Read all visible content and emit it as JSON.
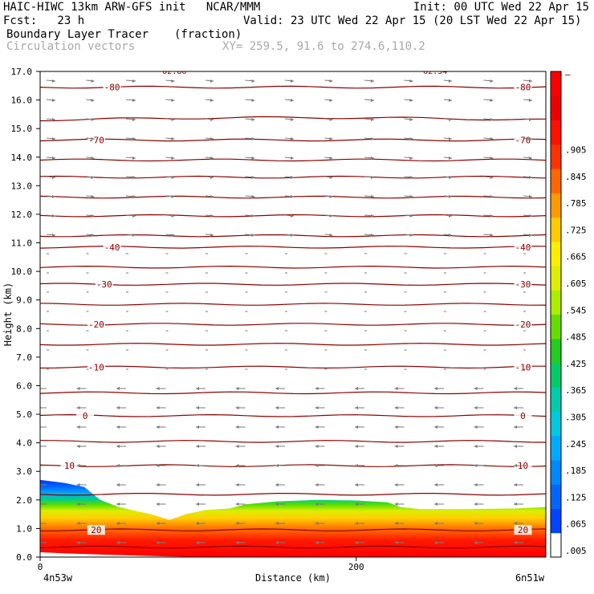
{
  "header": {
    "model": "HAIC-HIWC 13km ARW-GFS init   NCAR/MMM",
    "init": "Init: 00 UTC Wed 22 Apr 15",
    "fcst": "Fcst:   23 h",
    "valid": "Valid: 23 UTC Wed 22 Apr 15 (20 LST Wed 22 Apr 15)",
    "field": "Boundary Layer Tracer",
    "units": "(fraction)",
    "vectors": "Circulation vectors",
    "xy": "XY= 259.5, 91.6 to 274.6,110.2"
  },
  "chart_data": {
    "type": "cross-section",
    "ylabel": "Height (km)",
    "xlabel": "Distance (km)",
    "ylim": [
      0,
      17
    ],
    "xlim": [
      0,
      320
    ],
    "y_ticks": [
      "0.0",
      "1.0",
      "2.0",
      "3.0",
      "4.0",
      "5.0",
      "6.0",
      "7.0",
      "8.0",
      "9.0",
      "10.0",
      "11.0",
      "12.0",
      "13.0",
      "14.0",
      "15.0",
      "16.0",
      "17.0"
    ],
    "x_tick_value": 200,
    "x_tick_label": "200",
    "x_left_label": "4n53w",
    "x_right_label": "6n51w",
    "colorbar": {
      "labels": [
        ".005",
        ".065",
        ".125",
        ".185",
        ".245",
        ".305",
        ".365",
        ".425",
        ".485",
        ".545",
        ".605",
        ".665",
        ".725",
        ".785",
        ".845",
        ".905",
        "–"
      ],
      "colors": [
        "#ffffff",
        "#0044ff",
        "#0066ff",
        "#0088ff",
        "#00aaff",
        "#00c8e0",
        "#00ccaa",
        "#00cc66",
        "#22cc22",
        "#66dd00",
        "#aaee00",
        "#ddee00",
        "#ffee00",
        "#ffcc00",
        "#ff9900",
        "#ff6600",
        "#ff3300",
        "#ff1100",
        "#ee0000",
        "#ff0000"
      ]
    },
    "tracer_top_km": [
      [
        0,
        2.7
      ],
      [
        15,
        2.6
      ],
      [
        28,
        2.45
      ],
      [
        38,
        2.0
      ],
      [
        50,
        1.75
      ],
      [
        70,
        1.5
      ],
      [
        82,
        1.3
      ],
      [
        92,
        1.5
      ],
      [
        105,
        1.65
      ],
      [
        120,
        1.7
      ],
      [
        130,
        1.85
      ],
      [
        150,
        1.95
      ],
      [
        175,
        2.0
      ],
      [
        200,
        1.98
      ],
      [
        220,
        1.92
      ],
      [
        228,
        1.75
      ],
      [
        240,
        1.68
      ],
      [
        270,
        1.68
      ],
      [
        300,
        1.7
      ],
      [
        320,
        1.75
      ]
    ],
    "isotherms": [
      {
        "label": "-80",
        "height_km": 16.45,
        "label_x": [
          45,
          305
        ]
      },
      {
        "label": "",
        "height_km": 15.3
      },
      {
        "label": "-70",
        "height_km": 14.6,
        "label_x": [
          35,
          305
        ]
      },
      {
        "label": "",
        "height_km": 13.9
      },
      {
        "label": "",
        "height_km": 13.3
      },
      {
        "label": "",
        "height_km": 12.6
      },
      {
        "label": "",
        "height_km": 11.95
      },
      {
        "label": "",
        "height_km": 11.25
      },
      {
        "label": "-40",
        "height_km": 10.85,
        "label_x": [
          45,
          305
        ]
      },
      {
        "label": "",
        "height_km": 10.15
      },
      {
        "label": "-30",
        "height_km": 9.55,
        "label_x": [
          40,
          305
        ]
      },
      {
        "label": "",
        "height_km": 8.85
      },
      {
        "label": "-20",
        "height_km": 8.15,
        "label_x": [
          35,
          305
        ]
      },
      {
        "label": "",
        "height_km": 7.45
      },
      {
        "label": "-10",
        "height_km": 6.65,
        "label_x": [
          35,
          305
        ]
      },
      {
        "label": "",
        "height_km": 5.75
      },
      {
        "label": "0",
        "height_km": 4.95,
        "label_x": [
          28,
          305
        ]
      },
      {
        "label": "",
        "height_km": 4.05
      },
      {
        "label": "10",
        "height_km": 3.2,
        "label_x": [
          18,
          305
        ]
      },
      {
        "label": "",
        "height_km": 2.2
      },
      {
        "label": "20",
        "height_km": 0.95,
        "label_x": [
          35,
          305
        ]
      },
      {
        "label": "",
        "height_km": 0.35
      }
    ],
    "top_labels": [
      {
        "text": "02.80",
        "x": 85
      },
      {
        "text": "02.34",
        "x": 250
      }
    ]
  }
}
